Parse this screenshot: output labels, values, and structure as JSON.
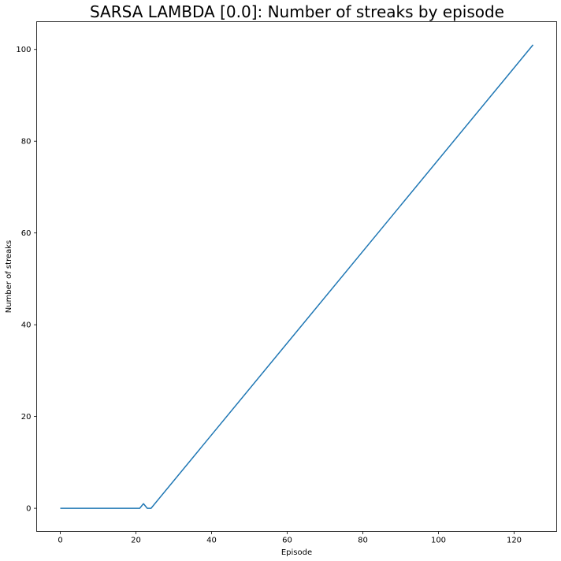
{
  "chart_data": {
    "type": "line",
    "title": "SARSA LAMBDA [0.0]: Number of streaks by episode",
    "xlabel": "Episode",
    "ylabel": "Number of streaks",
    "xlim": [
      -6.25,
      131.25
    ],
    "ylim": [
      -5.05,
      106.05
    ],
    "xticks": [
      0,
      20,
      40,
      60,
      80,
      100,
      120
    ],
    "yticks": [
      0,
      20,
      40,
      60,
      80,
      100
    ],
    "grid": false,
    "line_color": "#1f77b4",
    "series": [
      {
        "x": [
          0,
          21,
          22,
          23,
          24,
          125
        ],
        "y": [
          0,
          0,
          1,
          0,
          0,
          101
        ]
      }
    ]
  }
}
